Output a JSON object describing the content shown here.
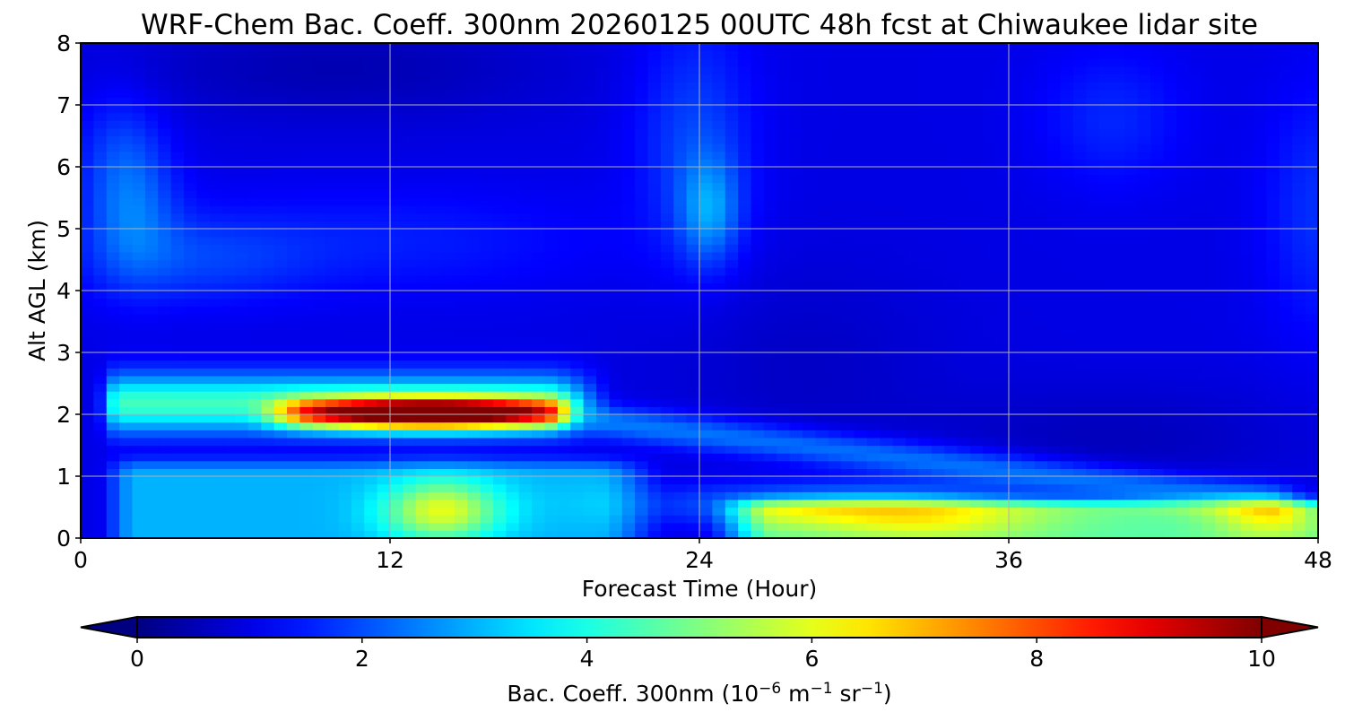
{
  "chart_data": {
    "type": "heatmap",
    "title": "WRF-Chem Bac. Coeff. 300nm  20260125 00UTC 48h fcst at Chiwaukee lidar site",
    "xlabel": "Forecast Time (Hour)",
    "ylabel": "Alt AGL (km)",
    "xlim": [
      0,
      48
    ],
    "ylim": [
      0,
      8
    ],
    "xticks": [
      "0",
      "12",
      "24",
      "36",
      "48"
    ],
    "yticks": [
      "0",
      "1",
      "2",
      "3",
      "4",
      "5",
      "6",
      "7",
      "8"
    ],
    "grid": true,
    "colormap": "jet",
    "colorbar": {
      "label_main": "Bac. Coeff. 300nm  (10",
      "label_exp1": "−6",
      "label_mid": " m",
      "label_exp2": "−1",
      "label_mid2": " sr",
      "label_exp3": "−1",
      "label_end": ")",
      "range": [
        0,
        10
      ],
      "ticks": [
        "0",
        "2",
        "4",
        "6",
        "8",
        "10"
      ],
      "extend": "both",
      "placement": "bottom"
    },
    "features": [
      {
        "type": "blob",
        "x": 0,
        "y": 0,
        "w": 0,
        "h": 0,
        "v": 0
      },
      {
        "type": "band_top_layer",
        "x_range": [
          0,
          21
        ],
        "y_center": 2.05,
        "thickness": 0.35,
        "value": 3.6
      },
      {
        "type": "peak_core",
        "x_range": [
          6,
          19
        ],
        "y_center": 2.0,
        "thickness": 0.25,
        "value": 9.8
      },
      {
        "type": "descending_tail",
        "x_from": 19,
        "x_to": 48,
        "y_from": 1.9,
        "y_to": 0.7,
        "value": 2.5
      },
      {
        "type": "surface_layer_late",
        "x_range": [
          26,
          48
        ],
        "y_top": 0.6,
        "value": 5.3
      },
      {
        "type": "surface_layer_early",
        "x_range": [
          0.5,
          23
        ],
        "y_top": 1.4,
        "value": 2.9
      },
      {
        "type": "column_24h",
        "x_center": 24.2,
        "y_range": [
          3.5,
          8.0
        ],
        "value": 2.4
      },
      {
        "type": "column_early",
        "x_center": 2,
        "y_range": [
          3.5,
          7.0
        ],
        "value": 2.2
      }
    ]
  }
}
